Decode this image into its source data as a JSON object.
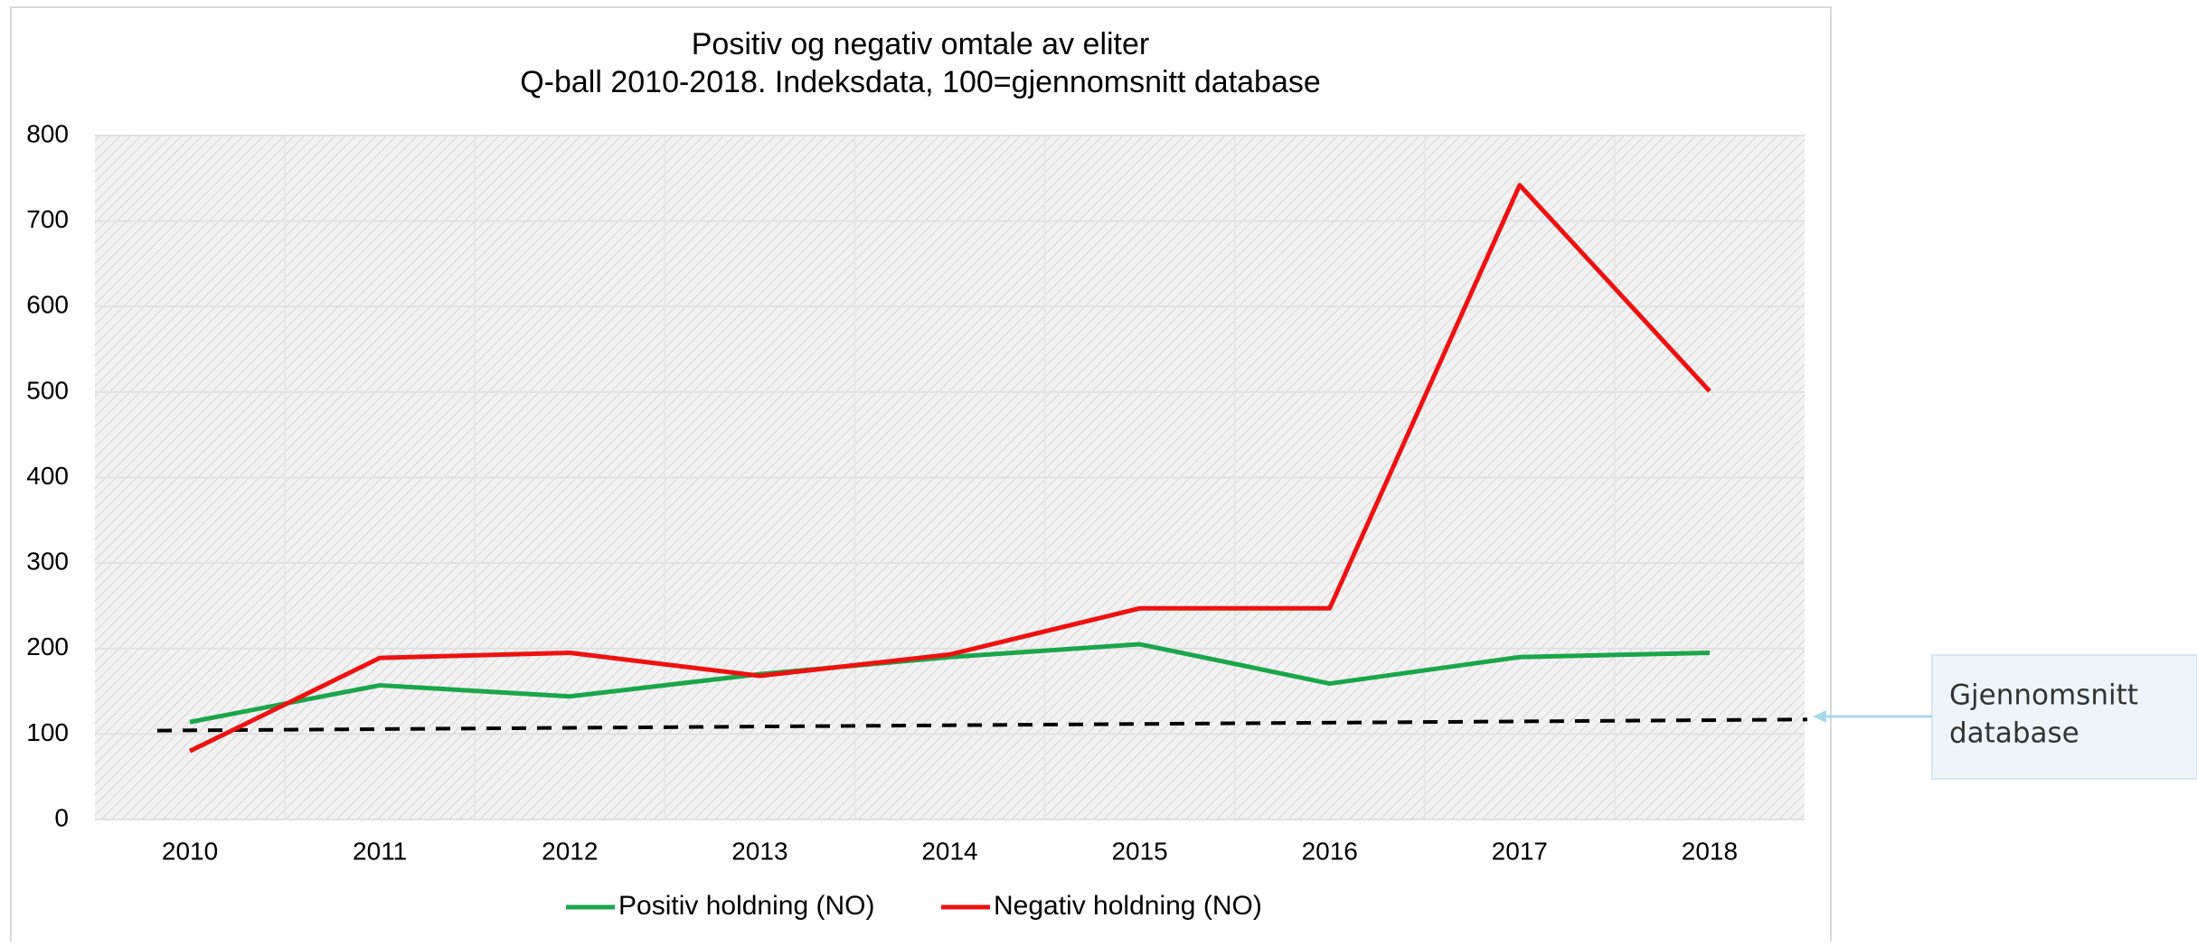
{
  "chart_data": {
    "type": "line",
    "title": "Positiv og negativ omtale av eliter",
    "subtitle": "Q-ball 2010-2018. Indeksdata, 100=gjennomsnitt database",
    "categories": [
      "2010",
      "2011",
      "2012",
      "2013",
      "2014",
      "2015",
      "2016",
      "2017",
      "2018"
    ],
    "series": [
      {
        "name": "Positiv holdning (NO)",
        "color": "#1aa64a",
        "values": [
          114,
          157,
          144,
          170,
          190,
          205,
          159,
          190,
          195
        ]
      },
      {
        "name": "Negativ holdning (NO)",
        "color": "#ee1111",
        "values": [
          80,
          189,
          195,
          168,
          193,
          247,
          247,
          742,
          501
        ]
      }
    ],
    "average_line": {
      "label_lines": [
        "Gjennomsnitt",
        "database"
      ],
      "values": [
        104,
        117
      ],
      "color": "#000000"
    },
    "ylim": [
      0,
      800
    ],
    "yticks": [
      0,
      100,
      200,
      300,
      400,
      500,
      600,
      700,
      800
    ],
    "grid": true
  }
}
